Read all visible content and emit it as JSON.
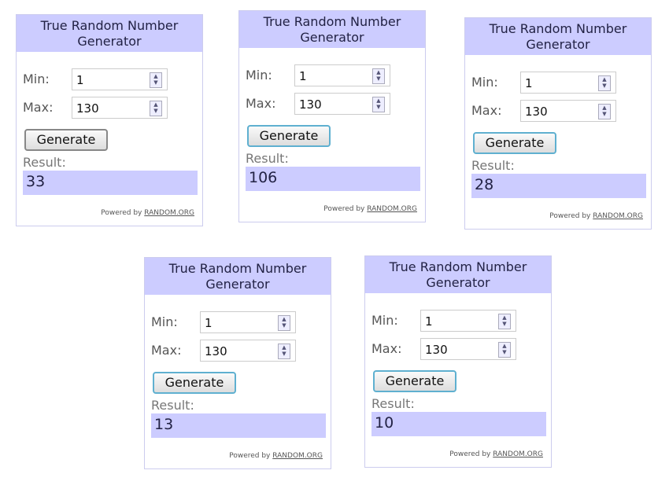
{
  "widgets": [
    {
      "title": "True Random Number Generator",
      "min_label": "Min:",
      "min": "1",
      "max_label": "Max:",
      "max": "130",
      "button": "Generate",
      "result_label": "Result:",
      "result": "33",
      "powered": "Powered by",
      "link": "RANDOM.ORG"
    },
    {
      "title": "True Random Number Generator",
      "min_label": "Min:",
      "min": "1",
      "max_label": "Max:",
      "max": "130",
      "button": "Generate",
      "result_label": "Result:",
      "result": "106",
      "powered": "Powered by",
      "link": "RANDOM.ORG"
    },
    {
      "title": "True Random Number Generator",
      "min_label": "Min:",
      "min": "1",
      "max_label": "Max:",
      "max": "130",
      "button": "Generate",
      "result_label": "Result:",
      "result": "28",
      "powered": "Powered by",
      "link": "RANDOM.ORG"
    },
    {
      "title": "True Random Number Generator",
      "min_label": "Min:",
      "min": "1",
      "max_label": "Max:",
      "max": "130",
      "button": "Generate",
      "result_label": "Result:",
      "result": "13",
      "powered": "Powered by",
      "link": "RANDOM.ORG"
    },
    {
      "title": "True Random Number Generator",
      "min_label": "Min:",
      "min": "1",
      "max_label": "Max:",
      "max": "130",
      "button": "Generate",
      "result_label": "Result:",
      "result": "10",
      "powered": "Powered by",
      "link": "RANDOM.ORG"
    }
  ]
}
